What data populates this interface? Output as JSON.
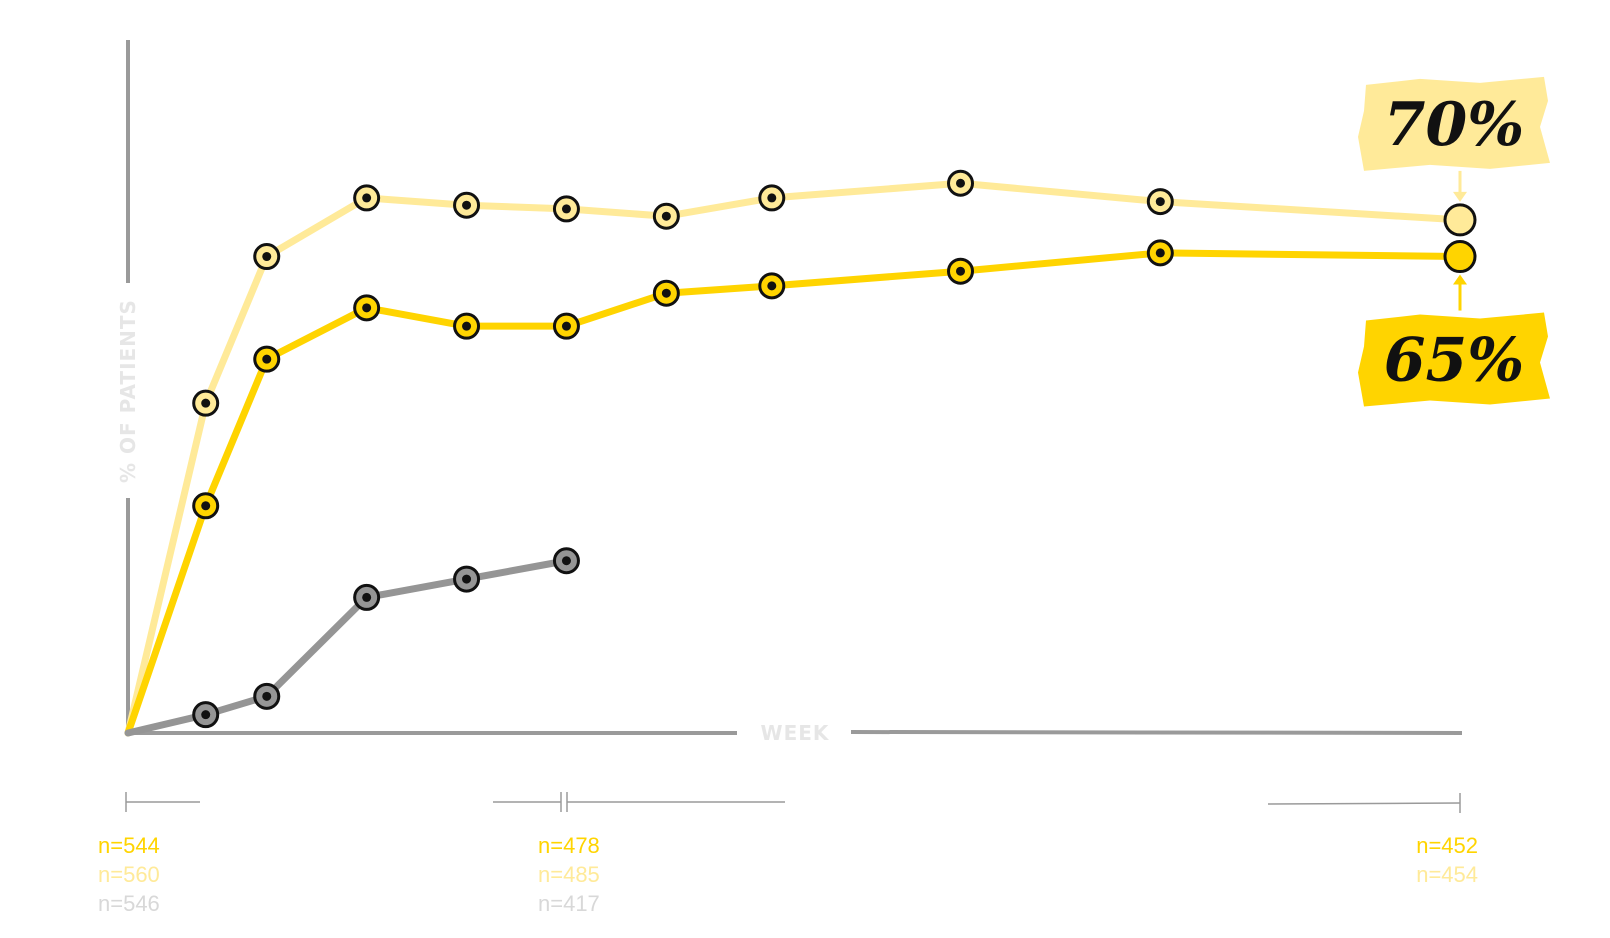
{
  "chart_data": {
    "type": "line",
    "xlabel": "WEEK",
    "ylabel": "% OF PATIENTS",
    "x_domain": [
      0,
      24
    ],
    "ylim": [
      0,
      100
    ],
    "grid": false,
    "colors": {
      "series_a": "#FFD400",
      "series_b": "#FFEA99",
      "series_c": "#959595",
      "axis": "#9a9a9a",
      "axis_label": "#e6e6e6"
    },
    "series": [
      {
        "key": "b",
        "color": "#FFEA99",
        "x": [
          0,
          1.4,
          2.5,
          4.3,
          6.1,
          7.9,
          9.7,
          11.6,
          15.0,
          18.6,
          24.0
        ],
        "values": [
          0,
          45,
          65,
          73,
          72,
          71.5,
          70.5,
          73,
          75,
          72.5,
          70
        ]
      },
      {
        "key": "a",
        "color": "#FFD400",
        "x": [
          0,
          1.4,
          2.5,
          4.3,
          6.1,
          7.9,
          9.7,
          11.6,
          15.0,
          18.6,
          24.0
        ],
        "values": [
          0,
          31,
          51,
          58,
          55.5,
          55.5,
          60,
          61,
          63,
          65.5,
          65
        ]
      },
      {
        "key": "c",
        "color": "#959595",
        "x": [
          0,
          1.4,
          2.5,
          4.3,
          6.1,
          7.9
        ],
        "values": [
          0,
          2.5,
          5,
          18.5,
          21,
          23.5
        ]
      }
    ],
    "callouts": [
      {
        "text": "70%",
        "series": "b",
        "color": "#FFEA99"
      },
      {
        "text": "65%",
        "series": "a",
        "color": "#FFD400"
      }
    ],
    "sample_sizes": [
      {
        "labels": [
          "n=544",
          "n=560",
          "n=546"
        ]
      },
      {
        "labels": [
          "n=478",
          "n=485",
          "n=417"
        ]
      },
      {
        "labels": [
          "n=452",
          "n=454"
        ]
      }
    ]
  }
}
